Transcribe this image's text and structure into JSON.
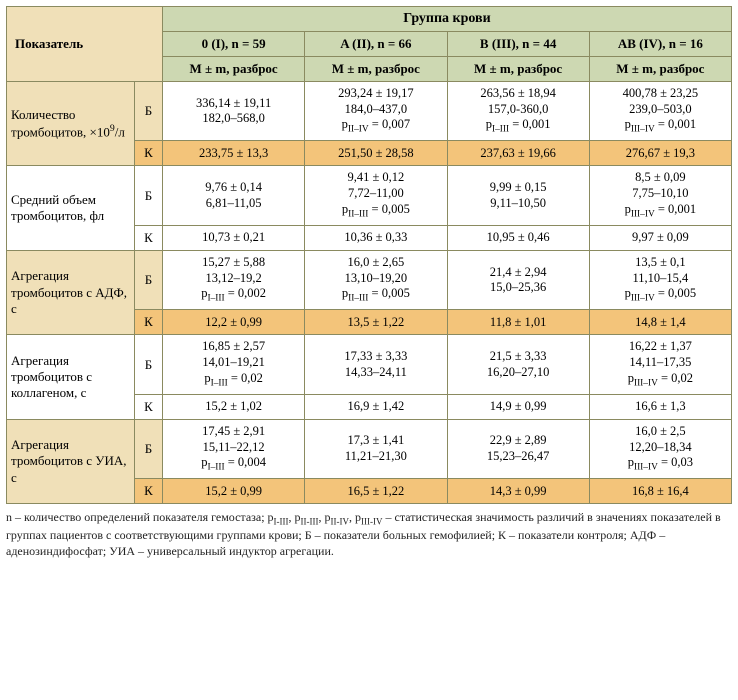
{
  "header": {
    "indicator": "Показатель",
    "group_title": "Группа крови",
    "groups": [
      "0 (I), n = 59",
      "A (II), n = 66",
      "B (III), n = 44",
      "AB (IV), n = 16"
    ],
    "mm": "M ± m, разброс"
  },
  "labels": {
    "B": "Б",
    "K": "К"
  },
  "colors": {
    "header_bg": "#cdd8b2",
    "side_bg": "#f0e0b8",
    "k_bg": "#f3c47a",
    "border": "#8a8a60",
    "text": "#222222"
  },
  "indicators": [
    {
      "name_html": "Количество тромбоцитов, ×10<sup>9</sup>/л",
      "B": [
        {
          "l1": "336,14 ± 19,11",
          "l2": "182,0–568,0"
        },
        {
          "l1": "293,24 ± 19,17",
          "l2": "184,0–437,0",
          "p_sub": "II–IV",
          "p_val": "0,007"
        },
        {
          "l1": "263,56 ± 18,94",
          "l2": "157,0-360,0",
          "p_sub": "I–III",
          "p_val": "0,001"
        },
        {
          "l1": "400,78 ± 23,25",
          "l2": "239,0–503,0",
          "p_sub": "III–IV",
          "p_val": "0,001"
        }
      ],
      "K": [
        {
          "l1": "233,75 ± 13,3"
        },
        {
          "l1": "251,50 ± 28,58"
        },
        {
          "l1": "237,63 ± 19,66"
        },
        {
          "l1": "276,67 ± 19,3"
        }
      ]
    },
    {
      "name_html": "Средний объем тромбоцитов, фл",
      "B": [
        {
          "l1": "9,76 ± 0,14",
          "l2": "6,81–11,05"
        },
        {
          "l1": "9,41 ± 0,12",
          "l2": "7,72–11,00",
          "p_sub": "II–III",
          "p_val": "0,005"
        },
        {
          "l1": "9,99 ± 0,15",
          "l2": "9,11–10,50"
        },
        {
          "l1": "8,5 ± 0,09",
          "l2": "7,75–10,10",
          "p_sub": "III–IV",
          "p_val": "0,001"
        }
      ],
      "K": [
        {
          "l1": "10,73 ± 0,21"
        },
        {
          "l1": "10,36 ± 0,33"
        },
        {
          "l1": "10,95 ± 0,46"
        },
        {
          "l1": "9,97 ± 0,09"
        }
      ]
    },
    {
      "name_html": "Агрегация тромбоцитов с АДФ, с",
      "B": [
        {
          "l1": "15,27 ± 5,88",
          "l2": "13,12–19,2",
          "p_sub": "I–III",
          "p_val": "0,002"
        },
        {
          "l1": "16,0 ± 2,65",
          "l2": "13,10–19,20",
          "p_sub": "II–III",
          "p_val": "0,005"
        },
        {
          "l1": "21,4 ± 2,94",
          "l2": "15,0–25,36"
        },
        {
          "l1": "13,5 ± 0,1",
          "l2": "11,10–15,4",
          "p_sub": "III–IV",
          "p_val": "0,005"
        }
      ],
      "K": [
        {
          "l1": "12,2 ± 0,99"
        },
        {
          "l1": "13,5 ± 1,22"
        },
        {
          "l1": "11,8 ± 1,01"
        },
        {
          "l1": "14,8 ± 1,4"
        }
      ]
    },
    {
      "name_html": "Агрегация тромбоцитов с коллагеном, с",
      "B": [
        {
          "l1": "16,85 ± 2,57",
          "l2": "14,01–19,21",
          "p_sub": "I–III",
          "p_val": "0,02"
        },
        {
          "l1": "17,33 ± 3,33",
          "l2": "14,33–24,11"
        },
        {
          "l1": "21,5 ± 3,33",
          "l2": "16,20–27,10"
        },
        {
          "l1": "16,22 ± 1,37",
          "l2": "14,11–17,35",
          "p_sub": "III–IV",
          "p_val": "0,02"
        }
      ],
      "K": [
        {
          "l1": "15,2 ± 1,02"
        },
        {
          "l1": "16,9 ± 1,42"
        },
        {
          "l1": "14,9 ± 0,99"
        },
        {
          "l1": "16,6 ± 1,3"
        }
      ]
    },
    {
      "name_html": "Агрегация тромбоцитов с УИА, с",
      "B": [
        {
          "l1": "17,45 ± 2,91",
          "l2": "15,11–22,12",
          "p_sub": "I–III",
          "p_val": "0,004"
        },
        {
          "l1": "17,3 ± 1,41",
          "l2": "11,21–21,30"
        },
        {
          "l1": "22,9 ± 2,89",
          "l2": "15,23–26,47"
        },
        {
          "l1": "16,0 ± 2,5",
          "l2": "12,20–18,34",
          "p_sub": "III–IV",
          "p_val": "0,03"
        }
      ],
      "K": [
        {
          "l1": "15,2 ± 0,99"
        },
        {
          "l1": "16,5 ± 1,22"
        },
        {
          "l1": "14,3 ± 0,99"
        },
        {
          "l1": "16,8 ± 16,4"
        }
      ]
    }
  ],
  "footnote_html": "n – количество определений показателя гемостаза; p<sub>I-III</sub>, p<sub>II-III</sub>, p<sub>II-IV</sub>, p<sub>III-IV</sub> – статистическая значимость различий в значениях показателей в группах пациентов с соответствующими группами крови; Б – показатели больных гемофилией; К – показатели контроля; АДФ – аденозиндифосфат; УИА – универсальный индуктор агрегации."
}
